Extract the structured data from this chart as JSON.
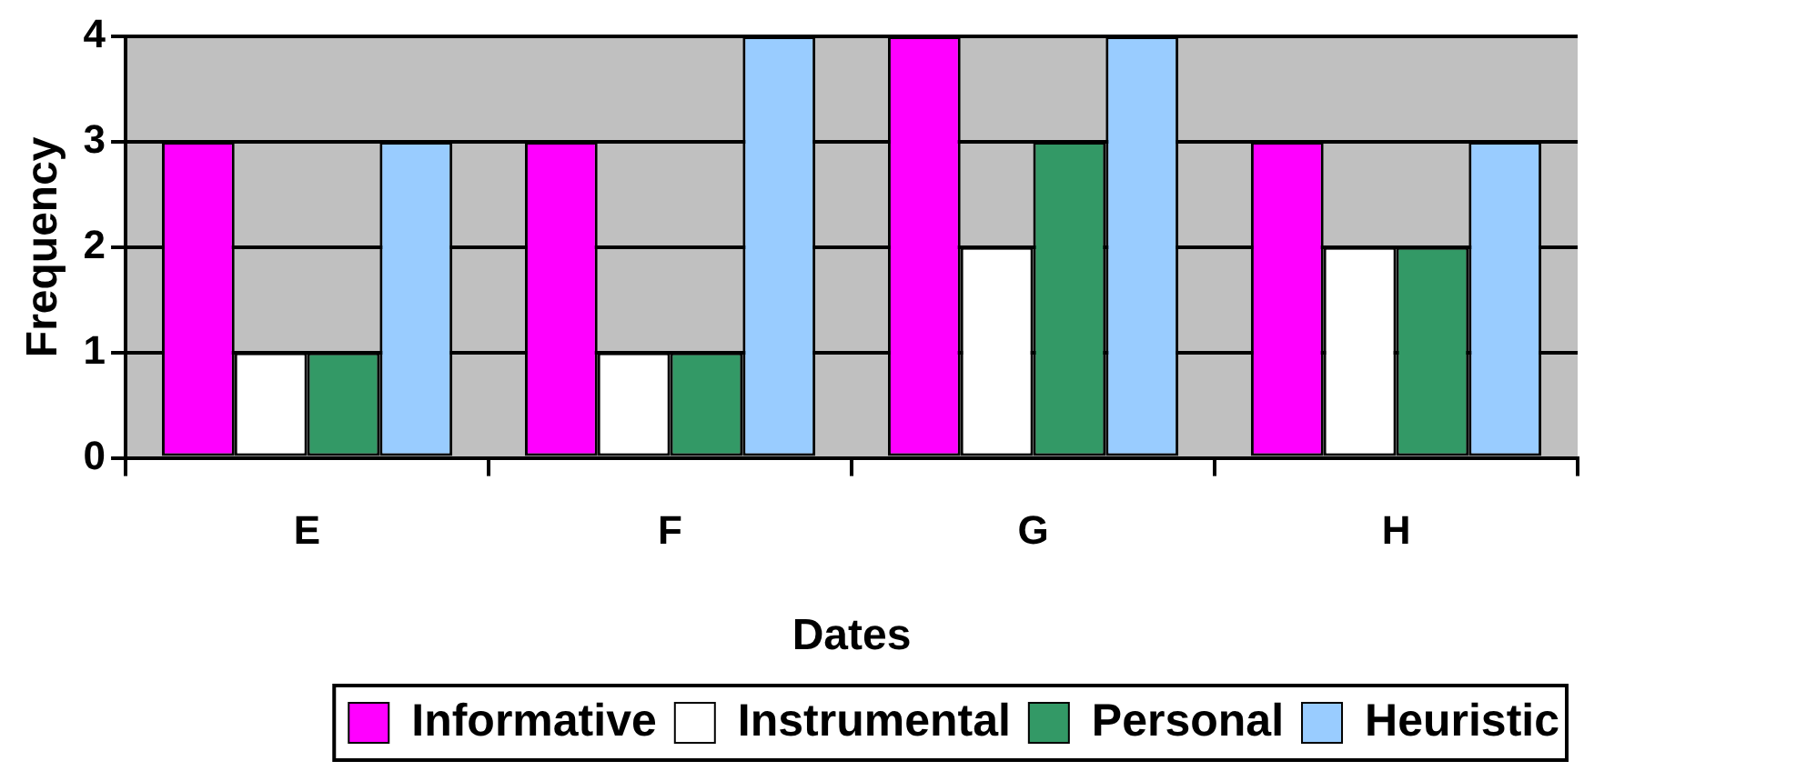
{
  "chart_data": {
    "type": "bar",
    "xlabel": "Dates",
    "ylabel": "Frequency",
    "categories": [
      "E",
      "F",
      "G",
      "H"
    ],
    "series": [
      {
        "name": "Informative",
        "color": "#ff00ff",
        "values": [
          3,
          3,
          4,
          3
        ]
      },
      {
        "name": "Instrumental",
        "color": "#ffffff",
        "values": [
          1,
          1,
          2,
          2
        ]
      },
      {
        "name": "Personal",
        "color": "#339966",
        "values": [
          1,
          1,
          3,
          2
        ]
      },
      {
        "name": "Heuristic",
        "color": "#99ccff",
        "values": [
          3,
          4,
          4,
          3
        ]
      }
    ],
    "ylim": [
      0,
      4
    ],
    "yticks": [
      0,
      1,
      2,
      3,
      4
    ],
    "grid": "y",
    "legend": "bottom right"
  }
}
